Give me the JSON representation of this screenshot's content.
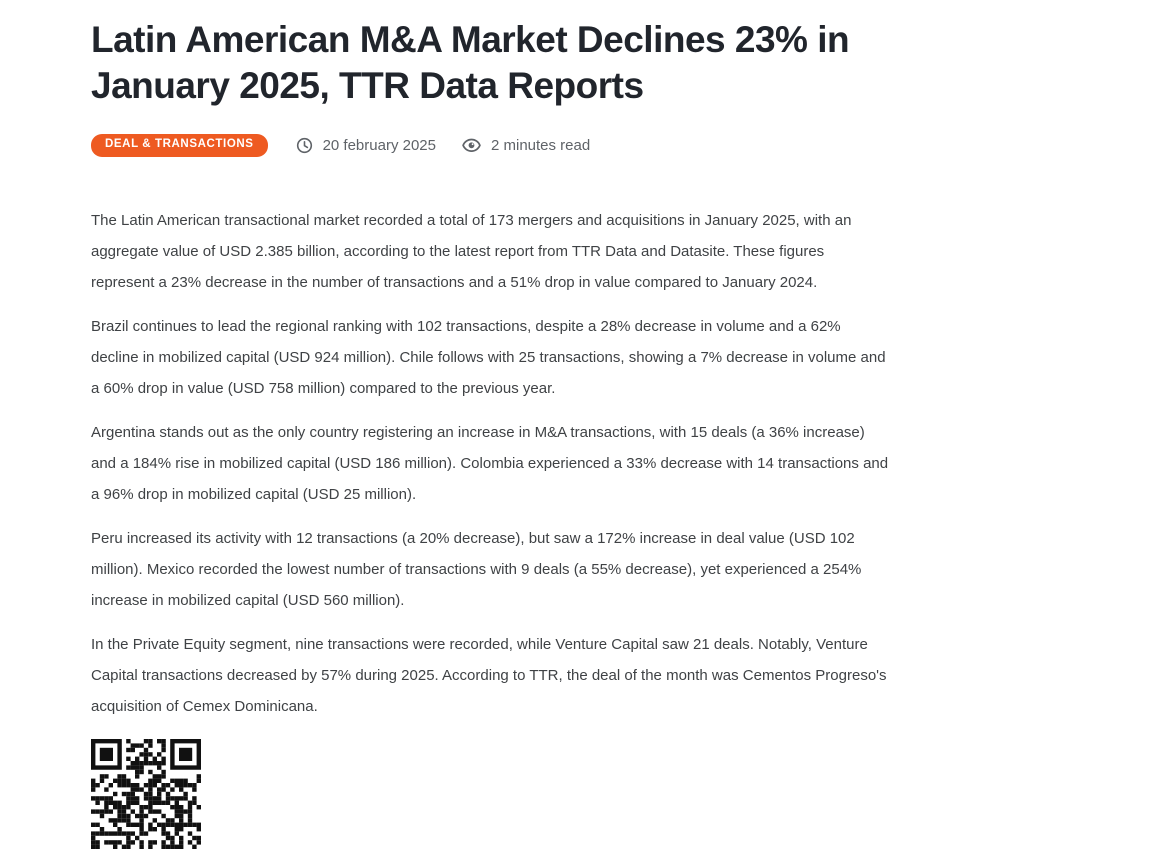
{
  "colors": {
    "page_background": "#ffffff",
    "badge_background": "#ee5a21",
    "badge_text": "#ffffff",
    "title_text": "#21252c",
    "body_text": "#3f4245",
    "meta_text": "#5f6368",
    "qr_foreground": "#111111"
  },
  "article": {
    "title": "Latin American M&A Market Declines 23% in January 2025, TTR Data Reports",
    "category_badge": "DEAL & TRANSACTIONS",
    "published_date": "20 february 2025",
    "read_time": "2 minutes read",
    "paragraphs": [
      "The Latin American transactional market recorded a total of 173 mergers and acquisitions in January 2025, with an aggregate value of USD 2.385 billion, according to the latest report from TTR Data and Datasite. These figures represent a 23% decrease in the number of transactions and a 51% drop in value compared to January 2024.",
      "Brazil continues to lead the regional ranking with 102 transactions, despite a 28% decrease in volume and a 62% decline in mobilized capital (USD 924 million). Chile follows with 25 transactions, showing a 7% decrease in volume and a 60% drop in value (USD 758 million) compared to the previous year.",
      "Argentina stands out as the only country registering an increase in M&A transactions, with 15 deals (a 36% increase) and a 184% rise in mobilized capital (USD 186 million). Colombia experienced a 33% decrease with 14 transactions and a 96% drop in mobilized capital (USD 25 million).",
      "Peru increased its activity with 12 transactions (a 20% decrease), but saw a 172% increase in deal value (USD 102 million). Mexico recorded the lowest number of transactions with 9 deals (a 55% decrease), yet experienced a 254% increase in mobilized capital (USD 560 million).",
      "In the Private Equity segment, nine transactions were recorded, while Venture Capital saw 21 deals. Notably, Venture Capital transactions decreased by 57% during 2025. According to TTR, the deal of the month was Cementos Progreso's acquisition of Cemex Dominicana."
    ]
  },
  "icons": {
    "date_icon": "clock-icon",
    "read_time_icon": "eye-icon",
    "footer_image": "qr-code"
  }
}
